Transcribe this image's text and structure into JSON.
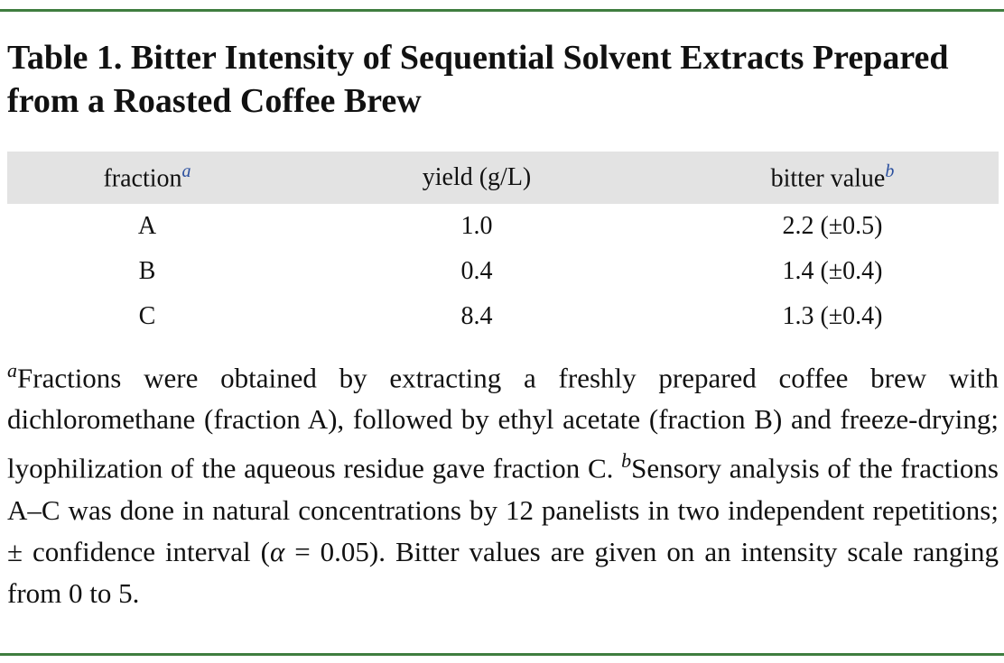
{
  "title": "Table 1. Bitter Intensity of Sequential Solvent Extracts Prepared from a Roasted Coffee Brew",
  "table": {
    "header": [
      {
        "text": "fraction",
        "note": "a"
      },
      {
        "text": "yield (g/L)"
      },
      {
        "text": "bitter value",
        "note": "b"
      }
    ],
    "rows": [
      [
        "A",
        "1.0",
        "2.2 (±0.5)"
      ],
      [
        "B",
        "0.4",
        "1.4 (±0.4)"
      ],
      [
        "C",
        "8.4",
        "1.3 (±0.4)"
      ]
    ]
  },
  "footnotes": [
    {
      "marker": "a",
      "text": "Fractions were obtained by extracting a freshly prepared coffee brew with dichloromethane (fraction A), followed by ethyl acetate (fraction B) and freeze-drying; lyophilization of the aqueous residue gave fraction C."
    },
    {
      "marker": "b",
      "text": "Sensory analysis of the fractions A–C was done in natural concentrations by 12 panelists in two independent repetitions; ± confidence interval (",
      "symbol": "α",
      "text_end": " = 0.05). Bitter values are given on an intensity scale ranging from 0 to 5."
    }
  ]
}
